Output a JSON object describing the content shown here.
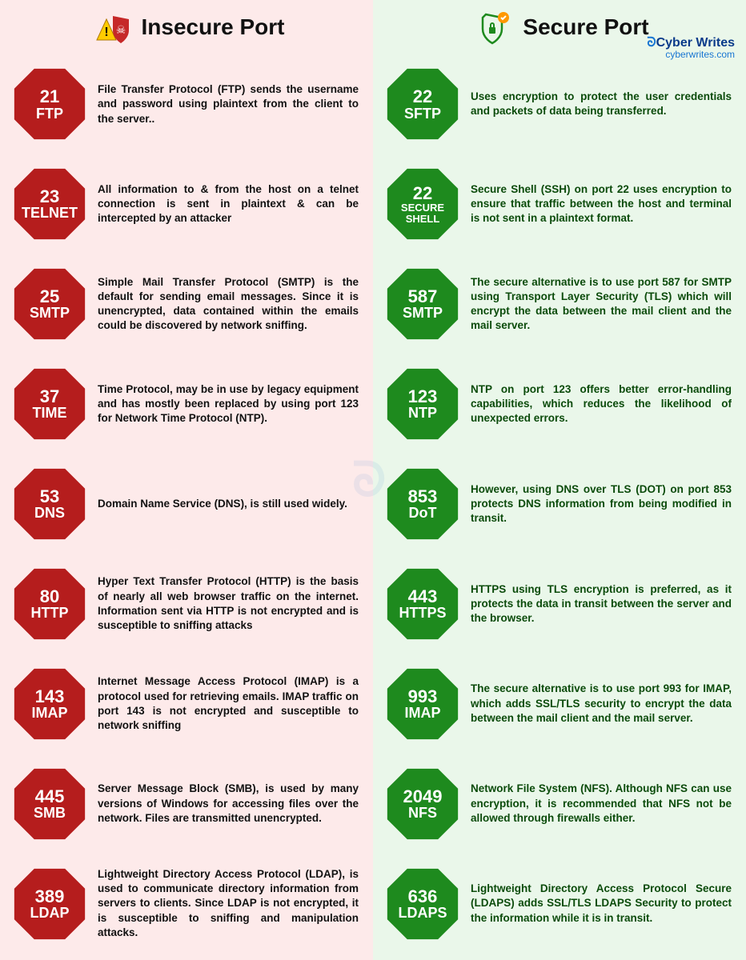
{
  "colors": {
    "insecure_bg": "#fdeaea",
    "secure_bg": "#eaf7ea",
    "insecure_badge": "#b51d1d",
    "secure_badge": "#1e8a1e",
    "brand_blue": "#1976d2",
    "text_dark": "#111111",
    "text_green": "#0b4b0b"
  },
  "header": {
    "insecure_title": "Insecure Port",
    "secure_title": "Secure Port",
    "brand_name": "Cyber Writes",
    "brand_url": "cyberwrites.com"
  },
  "insecure": [
    {
      "port": "21",
      "proto": "FTP",
      "desc": "File Transfer Protocol (FTP) sends the username and password using plaintext from the client to the server.."
    },
    {
      "port": "23",
      "proto": "TELNET",
      "desc": "All information to & from the host on a telnet connection is sent in plaintext & can be intercepted by an attacker"
    },
    {
      "port": "25",
      "proto": "SMTP",
      "desc": "Simple Mail Transfer Protocol (SMTP) is the default for sending email messages. Since it is unencrypted, data contained within the emails could be discovered by network sniffing."
    },
    {
      "port": "37",
      "proto": "TIME",
      "desc": "Time Protocol, may be in use by legacy equipment and has mostly been replaced by using port 123 for Network Time Protocol (NTP)."
    },
    {
      "port": "53",
      "proto": "DNS",
      "desc": "Domain Name Service (DNS), is still used widely."
    },
    {
      "port": "80",
      "proto": "HTTP",
      "desc": "Hyper Text Transfer Protocol (HTTP) is the basis of nearly all web browser traffic on the internet. Information sent via HTTP is not encrypted and is susceptible to sniffing attacks"
    },
    {
      "port": "143",
      "proto": "IMAP",
      "desc": "Internet Message Access Protocol  (IMAP) is a protocol used for retrieving emails. IMAP traffic on port 143 is not encrypted and susceptible to network sniffing"
    },
    {
      "port": "445",
      "proto": "SMB",
      "desc": "Server Message Block (SMB), is used  by many versions of Windows for accessing files over the network. Files are transmitted unencrypted."
    },
    {
      "port": "389",
      "proto": "LDAP",
      "desc": "Lightweight Directory Access Protocol (LDAP), is used to communicate directory information from servers to clients. Since LDAP is not encrypted, it is susceptible to sniffing and manipulation attacks."
    }
  ],
  "secure": [
    {
      "port": "22",
      "proto": "SFTP",
      "desc": "Uses encryption to protect the user credentials and packets of data being transferred."
    },
    {
      "port": "22",
      "proto": "SECURE\nSHELL",
      "small": true,
      "desc": "Secure Shell (SSH) on port 22 uses encryption to ensure that traffic between the host and terminal is not sent in a plaintext format."
    },
    {
      "port": "587",
      "proto": "SMTP",
      "desc": "The secure alternative is to use port 587 for SMTP using Transport Layer Security (TLS) which will encrypt the  data between the mail client and the mail server."
    },
    {
      "port": "123",
      "proto": "NTP",
      "desc": "NTP on port 123 offers better error-handling capabilities, which reduces the likelihood of unexpected errors."
    },
    {
      "port": "853",
      "proto": "DoT",
      "desc": "However, using DNS over TLS (DOT) on port 853 protects DNS information from being modified in transit."
    },
    {
      "port": "443",
      "proto": "HTTPS",
      "desc": "HTTPS using TLS encryption is preferred, as it protects the data in transit between the server and the browser."
    },
    {
      "port": "993",
      "proto": "IMAP",
      "desc": "The secure alternative is to use port 993 for IMAP, which adds SSL/TLS security to encrypt the data between the mail client and the mail server."
    },
    {
      "port": "2049",
      "proto": "NFS",
      "desc": "Network File System (NFS). Although NFS can use encryption, it is recommended that NFS not be allowed through firewalls either."
    },
    {
      "port": "636",
      "proto": "LDAPS",
      "desc": "Lightweight Directory Access Protocol Secure (LDAPS) adds SSL/TLS LDAPS Security to protect the information while it is in transit."
    }
  ]
}
